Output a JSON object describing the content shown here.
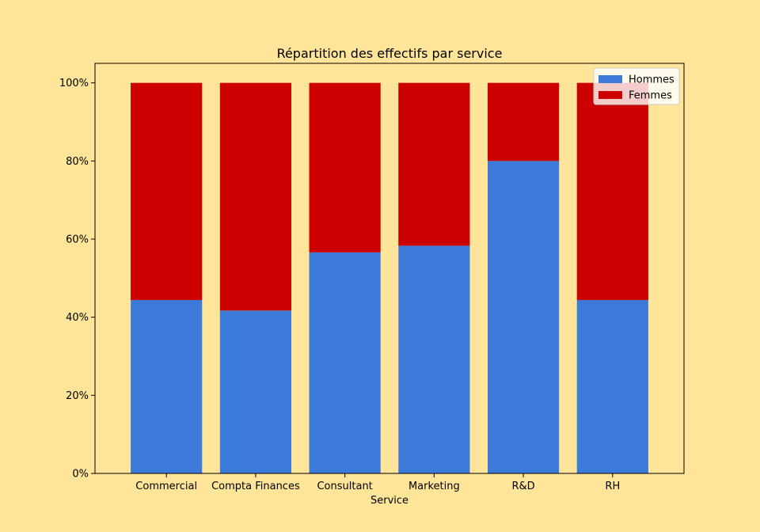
{
  "chart_data": {
    "type": "bar",
    "stacked": true,
    "title": "Répartition des effectifs par service",
    "xlabel": "Service",
    "ylabel": "",
    "categories": [
      "Commercial",
      "Compta Finances",
      "Consultant",
      "Marketing",
      "R&D",
      "RH"
    ],
    "series": [
      {
        "name": "Hommes",
        "color": "#3C7BD9",
        "values": [
          0.444,
          0.417,
          0.566,
          0.583,
          0.8,
          0.444
        ]
      },
      {
        "name": "Femmes",
        "color": "#CC0000",
        "values": [
          0.556,
          0.583,
          0.434,
          0.417,
          0.2,
          0.556
        ]
      }
    ],
    "ylim": [
      0,
      1.05
    ],
    "yticks": [
      {
        "value": 0,
        "label": "0%"
      },
      {
        "value": 0.2,
        "label": "20%"
      },
      {
        "value": 0.4,
        "label": "40%"
      },
      {
        "value": 0.6,
        "label": "60%"
      },
      {
        "value": 0.8,
        "label": "80%"
      },
      {
        "value": 1.0,
        "label": "100%"
      }
    ],
    "grid": false,
    "legend_position": "top-right",
    "background_color": "#FFE599"
  }
}
